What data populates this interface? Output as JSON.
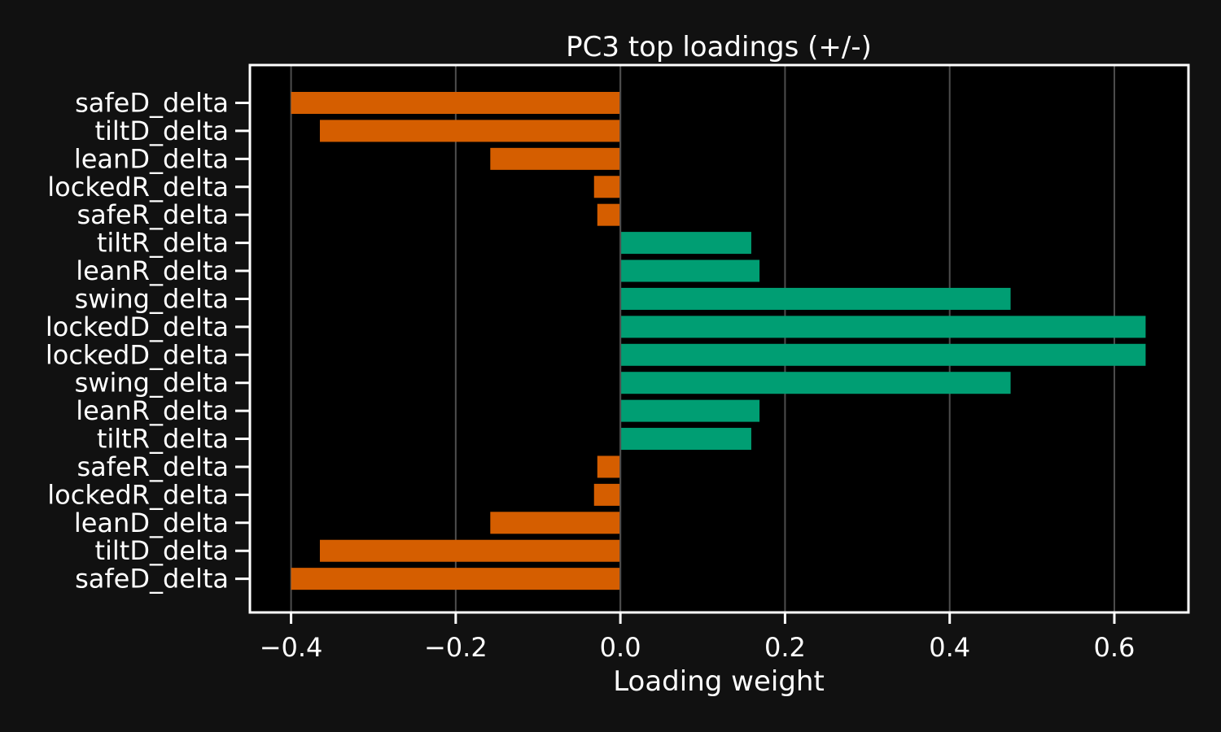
{
  "chart_data": {
    "type": "bar",
    "orientation": "horizontal",
    "title": "PC3 top loadings (+/-)",
    "xlabel": "Loading weight",
    "ylabel": "",
    "xlim": [
      -0.45,
      0.69
    ],
    "xticks": [
      -0.4,
      -0.2,
      0.0,
      0.2,
      0.4,
      0.6
    ],
    "xtick_labels": [
      "−0.4",
      "−0.2",
      "0.0",
      "0.2",
      "0.4",
      "0.6"
    ],
    "grid": "vertical",
    "categories": [
      "safeD_delta",
      "tiltD_delta",
      "leanD_delta",
      "lockedR_delta",
      "safeR_delta",
      "tiltR_delta",
      "leanR_delta",
      "swing_delta",
      "lockedD_delta",
      "lockedD_delta",
      "swing_delta",
      "leanR_delta",
      "tiltR_delta",
      "safeR_delta",
      "lockedR_delta",
      "leanD_delta",
      "tiltD_delta",
      "safeD_delta"
    ],
    "values": [
      -0.4,
      -0.365,
      -0.158,
      -0.032,
      -0.028,
      0.159,
      0.169,
      0.474,
      0.638,
      0.638,
      0.474,
      0.169,
      0.159,
      -0.028,
      -0.032,
      -0.158,
      -0.365,
      -0.4
    ],
    "colors": {
      "positive": "#009e73",
      "negative": "#d55e00",
      "background": "#111111",
      "plot_background": "#000000",
      "text": "#ffffff",
      "grid": "#4d4d4d"
    }
  }
}
